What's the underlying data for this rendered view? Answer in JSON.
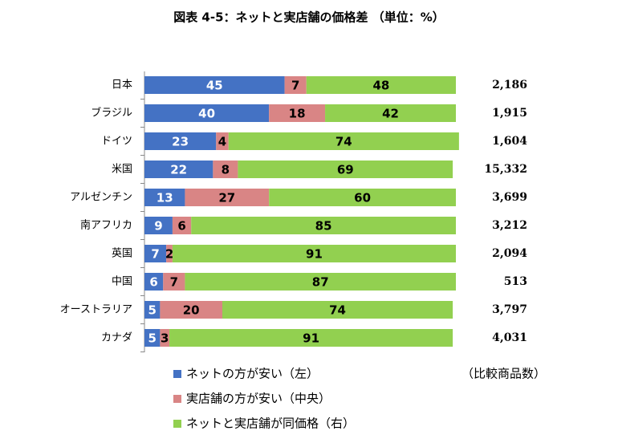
{
  "chart_data": {
    "type": "stacked_bar_horizontal",
    "title": "図表 4-5：ネットと実店舗の価格差 （単位：%）",
    "categories": [
      "日本",
      "ブラジル",
      "ドイツ",
      "米国",
      "アルゼンチン",
      "南アフリカ",
      "英国",
      "中国",
      "オーストラリア",
      "カナダ"
    ],
    "series": [
      {
        "name": "ネットの方が安い（左）",
        "color": "#4472c4",
        "values": [
          45,
          40,
          23,
          22,
          13,
          9,
          7,
          6,
          5,
          5
        ]
      },
      {
        "name": "実店舗の方が安い（中央）",
        "color": "#d98585",
        "values": [
          7,
          18,
          4,
          8,
          27,
          6,
          2,
          7,
          20,
          3
        ]
      },
      {
        "name": "ネットと実店舗が同価格（右）",
        "color": "#92d050",
        "values": [
          48,
          42,
          74,
          69,
          60,
          85,
          91,
          87,
          74,
          91
        ]
      }
    ],
    "xlim": [
      0,
      100
    ],
    "sample_size_title": "（比較商品数）",
    "sample_sizes": [
      {
        "value": 2186,
        "label": "2,186"
      },
      {
        "value": 1915,
        "label": "1,915"
      },
      {
        "value": 1604,
        "label": "1,604"
      },
      {
        "value": 15332,
        "label": "15,332"
      },
      {
        "value": 3699,
        "label": "3,699"
      },
      {
        "value": 3212,
        "label": "3,212"
      },
      {
        "value": 2094,
        "label": "2,094"
      },
      {
        "value": 513,
        "label": "513"
      },
      {
        "value": 3797,
        "label": "3,797"
      },
      {
        "value": 4031,
        "label": "4,031"
      }
    ]
  }
}
